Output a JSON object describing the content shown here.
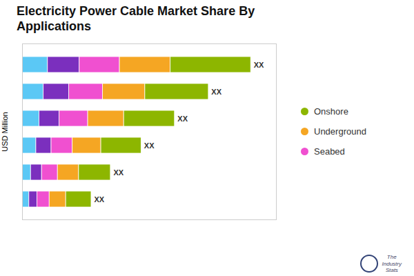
{
  "chart_data": {
    "type": "bar",
    "orientation": "horizontal",
    "stacked": true,
    "title": "Electricity Power Cable Market Share By\nApplications",
    "ylabel": "USD Million",
    "caption": "The\nIndustry\nStats",
    "annotation": "XX",
    "categories": [
      null,
      null,
      null,
      null,
      null,
      null
    ],
    "series": [
      {
        "color": "#5BC8F5",
        "values": [
          1.2,
          1.0,
          0.8,
          0.65,
          0.4,
          0.32
        ]
      },
      {
        "color": "#7B2FBE",
        "values": [
          1.5,
          1.2,
          0.95,
          0.72,
          0.52,
          0.38
        ]
      },
      {
        "name": "Seabed",
        "color": "#F050D0",
        "values": [
          1.9,
          1.6,
          1.35,
          1.0,
          0.75,
          0.58
        ]
      },
      {
        "name": "Underground",
        "color": "#F5A623",
        "values": [
          2.4,
          2.0,
          1.7,
          1.35,
          1.0,
          0.78
        ]
      },
      {
        "name": "Onshore",
        "color": "#8DB600",
        "values": [
          3.8,
          3.0,
          2.4,
          1.9,
          1.5,
          1.2
        ]
      }
    ],
    "xlim": [
      0,
      12
    ],
    "tick_labels": false,
    "grid": false,
    "legend": "right"
  }
}
